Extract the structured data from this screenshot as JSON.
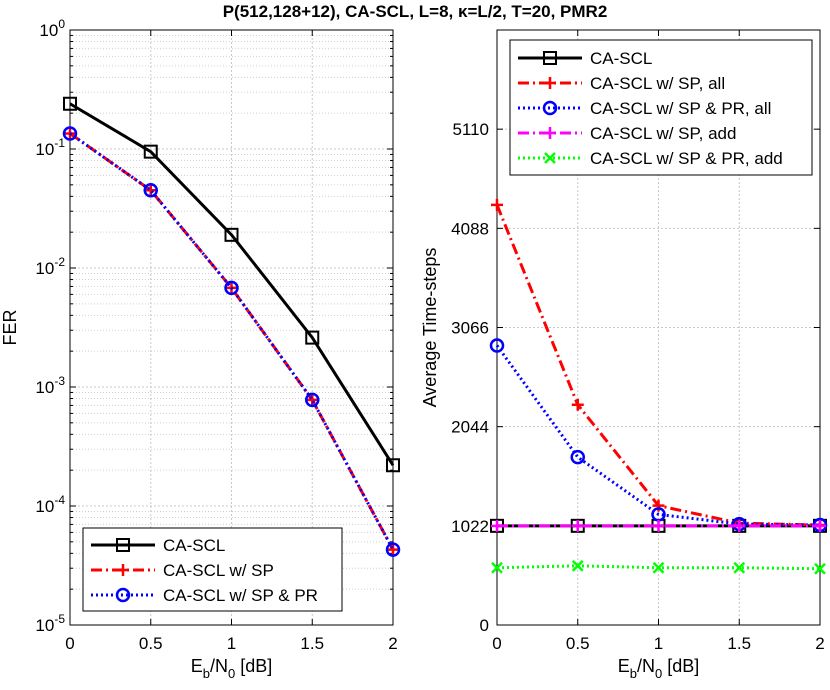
{
  "title": "P(512,128+12), CA-SCL, L=8, κ=L/2, T=20, PMR2",
  "chart_data": [
    {
      "type": "line",
      "yscale": "log",
      "xlabel": "Eb/N0 [dB]",
      "ylabel": "FER",
      "xlim": [
        0,
        2
      ],
      "ylim": [
        1e-05,
        1
      ],
      "x_ticks": [
        "0",
        "0.5",
        "1",
        "1.5",
        "2"
      ],
      "y_ticks": [
        "10^0",
        "10^-1",
        "10^-2",
        "10^-3",
        "10^-4",
        "10^-5"
      ],
      "grid": true,
      "legend_position": "bottom-left",
      "x": [
        0,
        0.5,
        1,
        1.5,
        2
      ],
      "series": [
        {
          "name": "CA-SCL",
          "values": [
            0.24,
            0.095,
            0.019,
            0.0026,
            0.00022
          ],
          "color": "#000000",
          "dash": "solid",
          "marker": "square"
        },
        {
          "name": "CA-SCL w/ SP",
          "values": [
            0.135,
            0.045,
            0.0068,
            0.00078,
            4.3e-05
          ],
          "color": "#ff0000",
          "dash": "dashdot",
          "marker": "plus"
        },
        {
          "name": "CA-SCL w/ SP & PR",
          "values": [
            0.135,
            0.045,
            0.0068,
            0.00078,
            4.3e-05
          ],
          "color": "#0000ff",
          "dash": "dotted",
          "marker": "circle"
        }
      ]
    },
    {
      "type": "line",
      "xlabel": "Eb/N0 [dB]",
      "ylabel": "Average Time-steps",
      "xlim": [
        0,
        2
      ],
      "ylim": [
        0,
        6132
      ],
      "x_ticks": [
        "0",
        "0.5",
        "1",
        "1.5",
        "2"
      ],
      "y_ticks": [
        "0",
        "1022",
        "2044",
        "3066",
        "4088",
        "5110"
      ],
      "grid": true,
      "legend_position": "top",
      "x": [
        0,
        0.5,
        1,
        1.5,
        2
      ],
      "series": [
        {
          "name": "CA-SCL",
          "values": [
            1022,
            1022,
            1022,
            1022,
            1022
          ],
          "color": "#000000",
          "dash": "solid",
          "marker": "square"
        },
        {
          "name": "CA-SCL w/ SP, all",
          "values": [
            4330,
            2270,
            1230,
            1050,
            1030
          ],
          "color": "#ff0000",
          "dash": "dashdot",
          "marker": "plus"
        },
        {
          "name": "CA-SCL w/ SP & PR, all",
          "values": [
            2880,
            1730,
            1140,
            1040,
            1030
          ],
          "color": "#0000ff",
          "dash": "dotted",
          "marker": "circle"
        },
        {
          "name": "CA-SCL w/ SP, add",
          "values": [
            1022,
            1022,
            1022,
            1022,
            1022
          ],
          "color": "#ff00ff",
          "dash": "dashdot",
          "marker": "plus"
        },
        {
          "name": "CA-SCL w/ SP & PR, add",
          "values": [
            590,
            610,
            590,
            590,
            580
          ],
          "color": "#00ff00",
          "dash": "dotted",
          "marker": "x"
        }
      ]
    }
  ]
}
